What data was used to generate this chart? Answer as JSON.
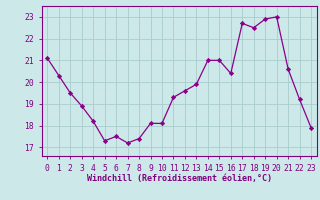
{
  "x": [
    0,
    1,
    2,
    3,
    4,
    5,
    6,
    7,
    8,
    9,
    10,
    11,
    12,
    13,
    14,
    15,
    16,
    17,
    18,
    19,
    20,
    21,
    22,
    23
  ],
  "y": [
    21.1,
    20.3,
    19.5,
    18.9,
    18.2,
    17.3,
    17.5,
    17.2,
    17.4,
    18.1,
    18.1,
    19.3,
    19.6,
    19.9,
    21.0,
    21.0,
    20.4,
    22.7,
    22.5,
    22.9,
    23.0,
    20.6,
    19.2,
    17.9
  ],
  "line_color": "#8b008b",
  "marker": "D",
  "marker_size": 2.2,
  "bg_color": "#cce8e8",
  "grid_color": "#aacccc",
  "xlabel": "Windchill (Refroidissement éolien,°C)",
  "xlabel_fontsize": 6.0,
  "xtick_labels": [
    "0",
    "1",
    "2",
    "3",
    "4",
    "5",
    "6",
    "7",
    "8",
    "9",
    "10",
    "11",
    "12",
    "13",
    "14",
    "15",
    "16",
    "17",
    "18",
    "19",
    "20",
    "21",
    "22",
    "23"
  ],
  "ytick_labels": [
    "17",
    "18",
    "19",
    "20",
    "21",
    "22",
    "23"
  ],
  "yticks": [
    17,
    18,
    19,
    20,
    21,
    22,
    23
  ],
  "ylim": [
    16.6,
    23.5
  ],
  "xlim": [
    -0.5,
    23.5
  ],
  "tick_fontsize": 5.8,
  "axis_color": "#800080",
  "tick_color": "#800080",
  "spine_color": "#800080"
}
